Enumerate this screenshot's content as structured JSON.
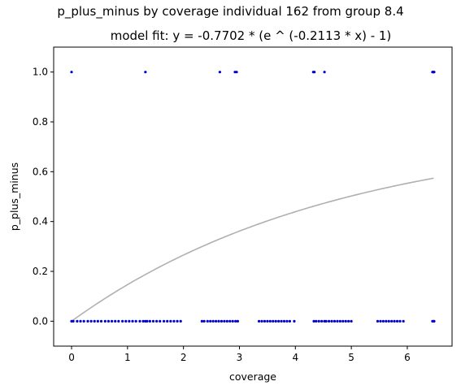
{
  "chart_data": {
    "type": "scatter",
    "title": "p_plus_minus by coverage individual 162 from group 8.4",
    "subtitle": "model fit: y = -0.7702 * (e ^ (-0.2113 * x) - 1)",
    "xlabel": "coverage",
    "ylabel": "p_plus_minus",
    "xlim": [
      -0.32,
      6.8
    ],
    "ylim": [
      -0.1,
      1.1
    ],
    "xticks": [
      0,
      1,
      2,
      3,
      4,
      5,
      6
    ],
    "yticks": [
      0.0,
      0.2,
      0.4,
      0.6,
      0.8,
      1.0
    ],
    "xtick_labels": [
      "0",
      "1",
      "2",
      "3",
      "4",
      "5",
      "6"
    ],
    "ytick_labels": [
      "0.0",
      "0.2",
      "0.4",
      "0.6",
      "0.8",
      "1.0"
    ],
    "grid": false,
    "point_color": "#0000cc",
    "fit_color": "#b0b0b0",
    "model": {
      "a": -0.7702,
      "b": -0.2113,
      "x_range": [
        0,
        6.47
      ]
    },
    "series": [
      {
        "x": [
          0.0,
          1.32,
          2.65,
          2.92,
          2.95,
          4.32,
          4.34,
          4.52,
          6.45,
          6.46,
          6.47,
          6.48
        ],
        "y": [
          1,
          1,
          1,
          1,
          1,
          1,
          1,
          1,
          1,
          1,
          1,
          1
        ]
      },
      {
        "x": [
          0.0,
          0.03,
          0.1,
          0.16,
          0.22,
          0.29,
          0.35,
          0.41,
          0.47,
          0.53,
          0.6,
          0.66,
          0.72,
          0.78,
          0.84,
          0.91,
          0.97,
          1.03,
          1.09,
          1.15,
          1.22,
          1.28,
          1.32,
          1.35,
          1.4,
          1.46,
          1.52,
          1.58,
          1.65,
          1.71,
          1.77,
          1.83,
          1.89,
          1.95,
          2.33,
          2.37,
          2.43,
          2.48,
          2.53,
          2.58,
          2.63,
          2.68,
          2.73,
          2.78,
          2.83,
          2.88,
          2.93,
          2.97,
          3.35,
          3.4,
          3.45,
          3.5,
          3.55,
          3.6,
          3.65,
          3.7,
          3.75,
          3.8,
          3.85,
          3.9,
          3.98,
          4.33,
          4.37,
          4.42,
          4.47,
          4.52,
          4.55,
          4.6,
          4.65,
          4.7,
          4.75,
          4.8,
          4.85,
          4.9,
          4.95,
          5.0,
          5.47,
          5.52,
          5.57,
          5.62,
          5.67,
          5.72,
          5.77,
          5.82,
          5.87,
          5.93,
          6.45,
          6.47,
          6.48
        ],
        "y": [
          0,
          0,
          0,
          0,
          0,
          0,
          0,
          0,
          0,
          0,
          0,
          0,
          0,
          0,
          0,
          0,
          0,
          0,
          0,
          0,
          0,
          0,
          0,
          0,
          0,
          0,
          0,
          0,
          0,
          0,
          0,
          0,
          0,
          0,
          0,
          0,
          0,
          0,
          0,
          0,
          0,
          0,
          0,
          0,
          0,
          0,
          0,
          0,
          0,
          0,
          0,
          0,
          0,
          0,
          0,
          0,
          0,
          0,
          0,
          0,
          0,
          0,
          0,
          0,
          0,
          0,
          0,
          0,
          0,
          0,
          0,
          0,
          0,
          0,
          0,
          0,
          0,
          0,
          0,
          0,
          0,
          0,
          0,
          0,
          0,
          0,
          0,
          0,
          0
        ]
      }
    ]
  }
}
